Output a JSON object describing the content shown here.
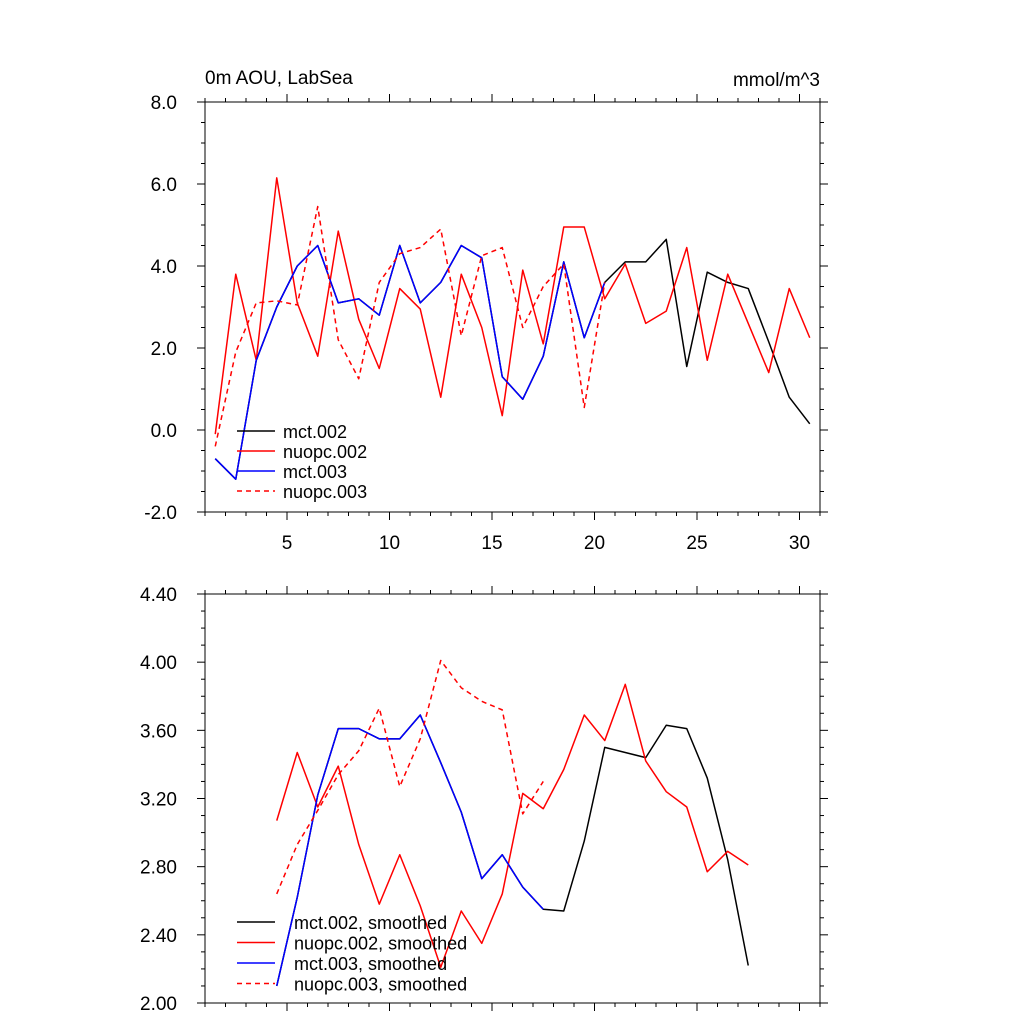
{
  "colors": {
    "mct002": "#000000",
    "nuopc": "#ff0000",
    "mct003": "#0000ff"
  },
  "chart_data": [
    {
      "type": "line",
      "title": "0m AOU, LabSea",
      "units": "mmol/m^3",
      "xlim": [
        1,
        31
      ],
      "ylim": [
        -2,
        8
      ],
      "xticks": [
        5,
        10,
        15,
        20,
        25,
        30
      ],
      "yticks": [
        -2,
        0,
        2,
        4,
        6,
        8
      ],
      "ytick_labels": [
        "-2.0",
        "0.0",
        "2.0",
        "4.0",
        "6.0",
        "8.0"
      ],
      "legend_position": "bottom-left",
      "series": [
        {
          "name": "mct.002",
          "color": "#000000",
          "dash": "solid",
          "x": [
            1.5,
            2.5,
            3.5,
            4.5,
            5.5,
            6.5,
            7.5,
            8.5,
            9.5,
            10.5,
            11.5,
            12.5,
            13.5,
            14.5,
            15.5,
            16.5,
            17.5,
            18.5,
            19.5,
            20.5,
            21.5,
            22.5,
            23.5,
            24.5,
            25.5,
            26.5,
            27.5,
            28.5,
            29.5,
            30.5
          ],
          "values": [
            -0.7,
            -1.2,
            1.7,
            3.0,
            4.0,
            4.5,
            3.1,
            3.2,
            2.8,
            4.5,
            3.1,
            3.6,
            4.5,
            4.2,
            1.3,
            0.75,
            1.8,
            4.1,
            2.25,
            3.6,
            4.1,
            4.1,
            4.65,
            1.55,
            3.85,
            3.6,
            3.45,
            2.15,
            0.8,
            0.15
          ]
        },
        {
          "name": "nuopc.002",
          "color": "#ff0000",
          "dash": "solid",
          "x": [
            1.5,
            2.5,
            3.5,
            4.5,
            5.5,
            6.5,
            7.5,
            8.5,
            9.5,
            10.5,
            11.5,
            12.5,
            13.5,
            14.5,
            15.5,
            16.5,
            17.5,
            18.5,
            19.5,
            20.5,
            21.5,
            22.5,
            23.5,
            24.5,
            25.5,
            26.5,
            27.5,
            28.5,
            29.5,
            30.5
          ],
          "values": [
            -0.1,
            3.8,
            1.7,
            6.15,
            3.1,
            1.8,
            4.85,
            2.7,
            1.5,
            3.45,
            2.95,
            0.8,
            3.8,
            2.5,
            0.35,
            3.9,
            2.1,
            4.95,
            4.95,
            3.2,
            4.05,
            2.6,
            2.9,
            4.45,
            1.7,
            3.8,
            2.6,
            1.4,
            3.45,
            2.25
          ]
        },
        {
          "name": "mct.003",
          "color": "#0000ff",
          "dash": "solid",
          "x": [
            1.5,
            2.5,
            3.5,
            4.5,
            5.5,
            6.5,
            7.5,
            8.5,
            9.5,
            10.5,
            11.5,
            12.5,
            13.5,
            14.5,
            15.5,
            16.5,
            17.5,
            18.5,
            19.5,
            20.5
          ],
          "values": [
            -0.7,
            -1.2,
            1.7,
            3.0,
            4.0,
            4.5,
            3.1,
            3.2,
            2.8,
            4.5,
            3.1,
            3.6,
            4.5,
            4.2,
            1.3,
            0.75,
            1.8,
            4.1,
            2.25,
            3.6
          ]
        },
        {
          "name": "nuopc.003",
          "color": "#ff0000",
          "dash": "dashed",
          "x": [
            1.5,
            2.5,
            3.5,
            4.5,
            5.5,
            6.5,
            7.5,
            8.5,
            9.5,
            10.5,
            11.5,
            12.5,
            13.5,
            14.5,
            15.5,
            16.5,
            17.5,
            18.5,
            19.5,
            20.5
          ],
          "values": [
            -0.4,
            1.9,
            3.1,
            3.15,
            3.05,
            5.45,
            2.2,
            1.25,
            3.6,
            4.3,
            4.45,
            4.9,
            2.3,
            4.25,
            4.45,
            2.5,
            3.5,
            4.05,
            0.55,
            3.6
          ]
        }
      ]
    },
    {
      "type": "line",
      "title": "",
      "units": "",
      "xlim": [
        1,
        31
      ],
      "ylim": [
        2,
        4.4
      ],
      "xticks": [
        5,
        10,
        15,
        20,
        25,
        30
      ],
      "yticks": [
        2.0,
        2.4,
        2.8,
        3.2,
        3.6,
        4.0,
        4.4
      ],
      "ytick_labels": [
        "2.00",
        "2.40",
        "2.80",
        "3.20",
        "3.60",
        "4.00",
        "4.40"
      ],
      "legend_position": "bottom-left",
      "series": [
        {
          "name": "mct.002, smoothed",
          "color": "#000000",
          "dash": "solid",
          "x": [
            4.5,
            5.5,
            6.5,
            7.5,
            8.5,
            9.5,
            10.5,
            11.5,
            12.5,
            13.5,
            14.5,
            15.5,
            16.5,
            17.5,
            18.5,
            19.5,
            20.5,
            21.5,
            22.5,
            23.5,
            24.5,
            25.5,
            26.5,
            27.5
          ],
          "values": [
            2.1,
            2.62,
            3.22,
            3.61,
            3.61,
            3.55,
            3.55,
            3.69,
            3.41,
            3.12,
            2.73,
            2.87,
            2.68,
            2.55,
            2.54,
            2.95,
            3.5,
            3.47,
            3.44,
            3.63,
            3.61,
            3.32,
            2.84,
            2.22
          ]
        },
        {
          "name": "nuopc.002, smoothed",
          "color": "#ff0000",
          "dash": "solid",
          "x": [
            4.5,
            5.5,
            6.5,
            7.5,
            8.5,
            9.5,
            10.5,
            11.5,
            12.5,
            13.5,
            14.5,
            15.5,
            16.5,
            17.5,
            18.5,
            19.5,
            20.5,
            21.5,
            22.5,
            23.5,
            24.5,
            25.5,
            26.5,
            27.5
          ],
          "values": [
            3.07,
            3.47,
            3.15,
            3.39,
            2.93,
            2.58,
            2.87,
            2.57,
            2.21,
            2.54,
            2.35,
            2.64,
            3.23,
            3.14,
            3.37,
            3.69,
            3.54,
            3.87,
            3.42,
            3.24,
            3.15,
            2.77,
            2.89,
            2.81
          ]
        },
        {
          "name": "mct.003, smoothed",
          "color": "#0000ff",
          "dash": "solid",
          "x": [
            4.5,
            5.5,
            6.5,
            7.5,
            8.5,
            9.5,
            10.5,
            11.5,
            12.5,
            13.5,
            14.5,
            15.5,
            16.5,
            17.5
          ],
          "values": [
            2.1,
            2.62,
            3.22,
            3.61,
            3.61,
            3.55,
            3.55,
            3.69,
            3.41,
            3.12,
            2.73,
            2.87,
            2.68,
            2.55
          ]
        },
        {
          "name": "nuopc.003, smoothed",
          "color": "#ff0000",
          "dash": "dashed",
          "x": [
            4.5,
            5.5,
            6.5,
            7.5,
            8.5,
            9.5,
            10.5,
            11.5,
            12.5,
            13.5,
            14.5,
            15.5,
            16.5,
            17.5
          ],
          "values": [
            2.64,
            2.93,
            3.13,
            3.34,
            3.48,
            3.73,
            3.27,
            3.55,
            4.01,
            3.85,
            3.77,
            3.72,
            3.11,
            3.3
          ]
        }
      ]
    }
  ]
}
